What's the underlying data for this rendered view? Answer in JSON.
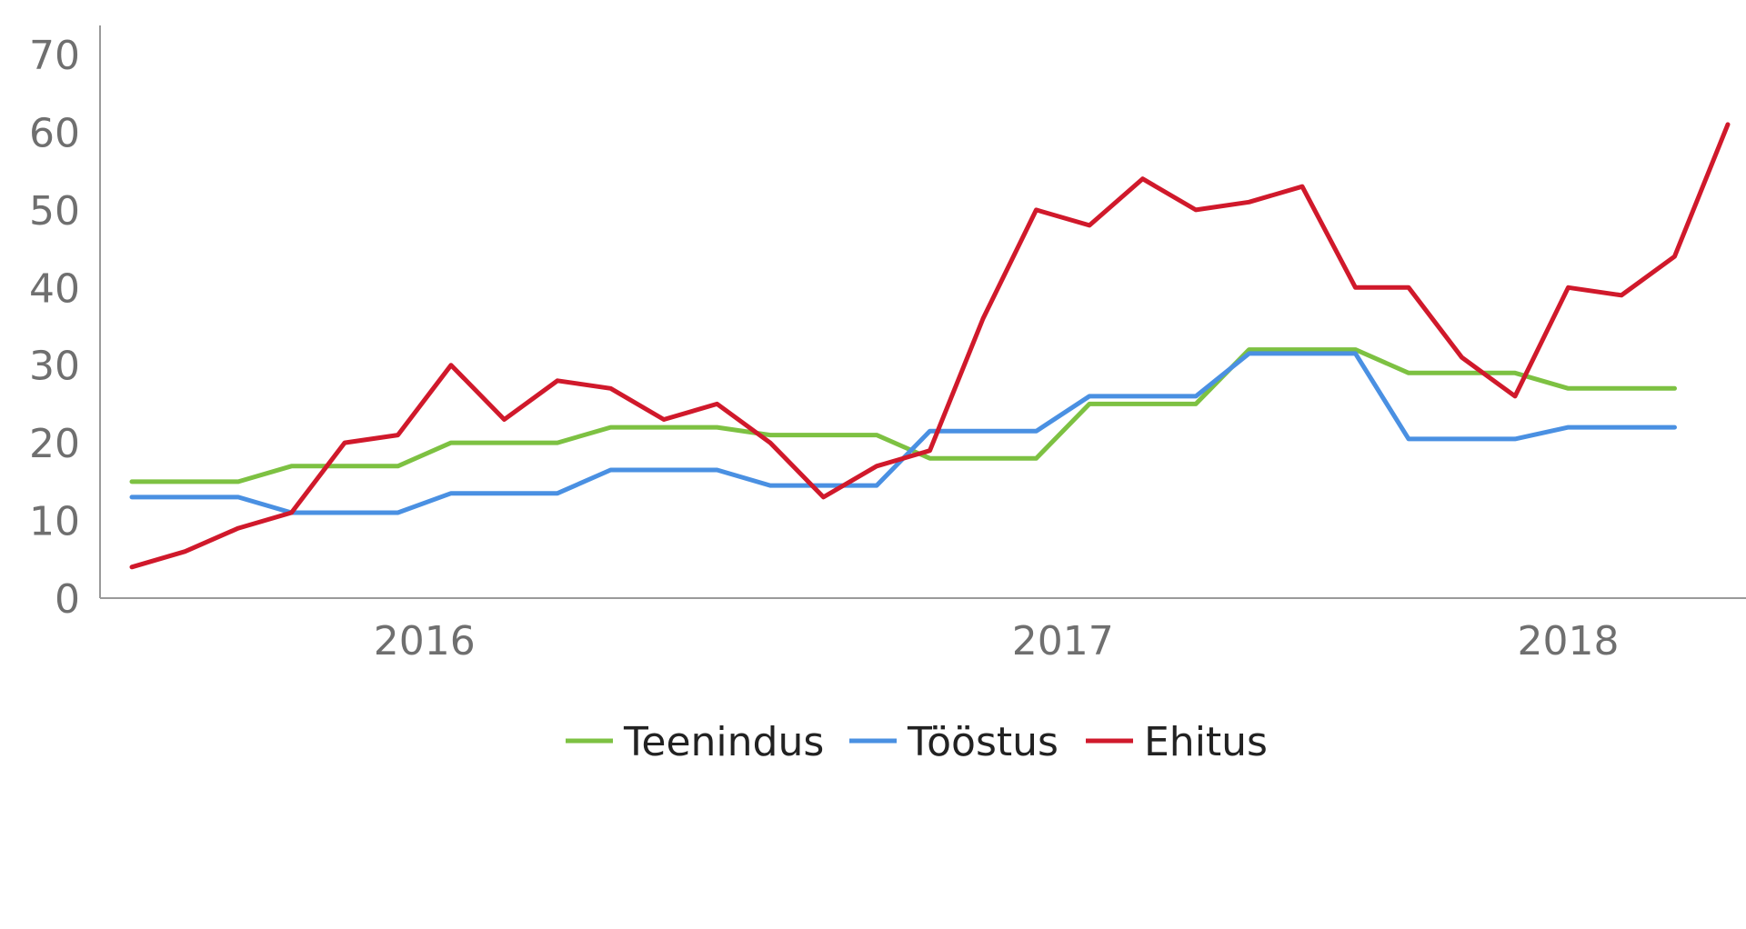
{
  "chart_data": {
    "type": "line",
    "ylim": [
      0,
      70
    ],
    "y_ticks": [
      0,
      10,
      20,
      30,
      40,
      50,
      60,
      70
    ],
    "x_tick_labels": [
      {
        "label": "2016",
        "index": 5.5
      },
      {
        "label": "2017",
        "index": 17.5
      },
      {
        "label": "2018",
        "index": 27
      }
    ],
    "grid": false,
    "legend_position": "bottom",
    "series": [
      {
        "name": "Teenindus",
        "color": "#7dc142",
        "values": [
          15,
          15,
          15,
          17,
          17,
          17,
          20,
          20,
          20,
          22,
          22,
          22,
          21,
          21,
          21,
          18,
          18,
          18,
          25,
          25,
          25,
          32,
          32,
          32,
          29,
          29,
          29,
          27,
          27,
          27
        ]
      },
      {
        "name": "Tööstus",
        "color": "#4a90e2",
        "values": [
          13,
          13,
          13,
          11,
          11,
          11,
          13.5,
          13.5,
          13.5,
          16.5,
          16.5,
          16.5,
          14.5,
          14.5,
          14.5,
          21.5,
          21.5,
          21.5,
          26,
          26,
          26,
          31.5,
          31.5,
          31.5,
          20.5,
          20.5,
          20.5,
          22,
          22,
          22
        ]
      },
      {
        "name": "Ehitus",
        "color": "#d0192b",
        "values": [
          4,
          6,
          9,
          11,
          20,
          21,
          30,
          23,
          28,
          27,
          23,
          25,
          20,
          13,
          17,
          19,
          36,
          50,
          48,
          54,
          50,
          51,
          53,
          40,
          40,
          31,
          26,
          40,
          39,
          44,
          61
        ]
      }
    ]
  }
}
